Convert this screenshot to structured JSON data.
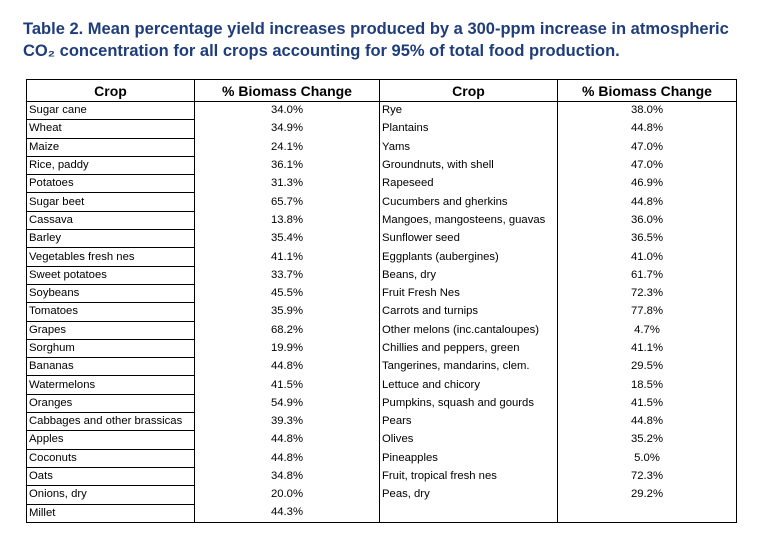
{
  "caption": {
    "line1": "Table 2. Mean percentage yield increases produced by a 300-ppm increase in atmospheric",
    "line2": "CO₂ concentration for all crops accounting for 95% of total food production."
  },
  "table": {
    "headers": [
      "Crop",
      "% Biomass Change",
      "Crop",
      "% Biomass Change"
    ],
    "rows": [
      [
        "Sugar cane",
        "34.0%",
        "Rye",
        "38.0%"
      ],
      [
        "Wheat",
        "34.9%",
        "Plantains",
        "44.8%"
      ],
      [
        "Maize",
        "24.1%",
        "Yams",
        "47.0%"
      ],
      [
        "Rice, paddy",
        "36.1%",
        "Groundnuts, with shell",
        "47.0%"
      ],
      [
        "Potatoes",
        "31.3%",
        "Rapeseed",
        "46.9%"
      ],
      [
        "Sugar beet",
        "65.7%",
        "Cucumbers and gherkins",
        "44.8%"
      ],
      [
        "Cassava",
        "13.8%",
        "Mangoes, mangosteens, guavas",
        "36.0%"
      ],
      [
        "Barley",
        "35.4%",
        "Sunflower seed",
        "36.5%"
      ],
      [
        "Vegetables fresh nes",
        "41.1%",
        "Eggplants (aubergines)",
        "41.0%"
      ],
      [
        "Sweet potatoes",
        "33.7%",
        "Beans, dry",
        "61.7%"
      ],
      [
        "Soybeans",
        "45.5%",
        "Fruit Fresh Nes",
        "72.3%"
      ],
      [
        "Tomatoes",
        "35.9%",
        "Carrots and turnips",
        "77.8%"
      ],
      [
        "Grapes",
        "68.2%",
        "Other melons (inc.cantaloupes)",
        "4.7%"
      ],
      [
        "Sorghum",
        "19.9%",
        "Chillies and peppers, green",
        "41.1%"
      ],
      [
        "Bananas",
        "44.8%",
        "Tangerines, mandarins, clem.",
        "29.5%"
      ],
      [
        "Watermelons",
        "41.5%",
        "Lettuce and chicory",
        "18.5%"
      ],
      [
        "Oranges",
        "54.9%",
        "Pumpkins, squash and gourds",
        "41.5%"
      ],
      [
        "Cabbages and other brassicas",
        "39.3%",
        "Pears",
        "44.8%"
      ],
      [
        "Apples",
        "44.8%",
        "Olives",
        "35.2%"
      ],
      [
        "Coconuts",
        "44.8%",
        "Pineapples",
        "5.0%"
      ],
      [
        "Oats",
        "34.8%",
        "Fruit, tropical fresh nes",
        "72.3%"
      ],
      [
        "Onions, dry",
        "20.0%",
        "Peas, dry",
        "29.2%"
      ],
      [
        "Millet",
        "44.3%",
        "",
        ""
      ]
    ]
  }
}
